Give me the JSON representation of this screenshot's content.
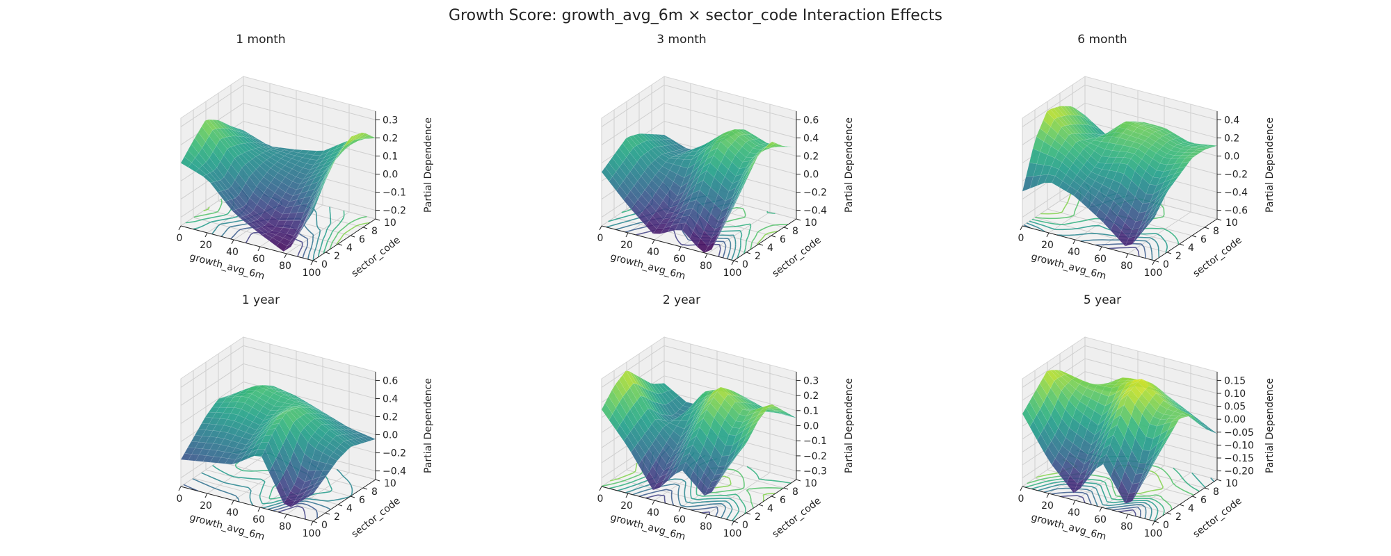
{
  "figure": {
    "title": "Growth Score: growth_avg_6m × sector_code Interaction Effects"
  },
  "chart_data": [
    {
      "type": "surface3d",
      "title": "1 month",
      "xlabel": "growth_avg_6m",
      "ylabel": "sector_code",
      "zlabel": "Partial Dependence",
      "xticks": [
        "0",
        "20",
        "40",
        "60",
        "80",
        "100"
      ],
      "yticks": [
        "0",
        "2",
        "4",
        "6",
        "8",
        "10"
      ],
      "zticks": [
        "−0.2",
        "−0.1",
        "0.0",
        "0.1",
        "0.2",
        "0.3"
      ],
      "xlim": [
        0,
        100
      ],
      "ylim": [
        0,
        10
      ],
      "zlim": [
        -0.25,
        0.35
      ],
      "colormap": "viridis",
      "surface": {
        "x": [
          0,
          20,
          40,
          60,
          80,
          100
        ],
        "y": [
          0,
          2,
          4,
          6,
          8,
          10
        ],
        "z": [
          [
            0.1,
            0.05,
            -0.1,
            -0.18,
            -0.25,
            0.02
          ],
          [
            0.18,
            0.02,
            -0.12,
            -0.2,
            -0.18,
            0.15
          ],
          [
            0.25,
            0.1,
            -0.05,
            -0.12,
            -0.05,
            0.25
          ],
          [
            0.2,
            0.08,
            0.0,
            -0.05,
            0.05,
            0.3
          ],
          [
            0.12,
            0.05,
            0.02,
            0.0,
            0.1,
            0.28
          ],
          [
            0.05,
            0.0,
            0.02,
            0.05,
            0.15,
            0.2
          ]
        ]
      }
    },
    {
      "type": "surface3d",
      "title": "3 month",
      "xlabel": "growth_avg_6m",
      "ylabel": "sector_code",
      "zlabel": "Partial Dependence",
      "xticks": [
        "0",
        "20",
        "40",
        "60",
        "80",
        "100"
      ],
      "yticks": [
        "0",
        "2",
        "4",
        "6",
        "8",
        "10"
      ],
      "zticks": [
        "−0.4",
        "−0.2",
        "0.0",
        "0.2",
        "0.4",
        "0.6"
      ],
      "xlim": [
        0,
        100
      ],
      "ylim": [
        0,
        10
      ],
      "zlim": [
        -0.5,
        0.7
      ],
      "colormap": "viridis",
      "surface": {
        "x": [
          0,
          20,
          40,
          60,
          80,
          100
        ],
        "y": [
          0,
          2,
          4,
          6,
          8,
          10
        ],
        "z": [
          [
            0.1,
            -0.2,
            -0.45,
            -0.3,
            -0.55,
            0.1
          ],
          [
            0.2,
            -0.1,
            -0.35,
            -0.1,
            -0.3,
            0.3
          ],
          [
            0.3,
            0.0,
            -0.2,
            0.2,
            0.0,
            0.5
          ],
          [
            0.25,
            0.05,
            0.1,
            0.4,
            0.2,
            0.55
          ],
          [
            0.15,
            0.0,
            0.2,
            0.45,
            0.3,
            0.4
          ],
          [
            0.05,
            -0.05,
            0.1,
            0.35,
            0.25,
            0.3
          ]
        ]
      }
    },
    {
      "type": "surface3d",
      "title": "6 month",
      "xlabel": "growth_avg_6m",
      "ylabel": "sector_code",
      "zlabel": "Partial Dependence",
      "xticks": [
        "0",
        "20",
        "40",
        "60",
        "80",
        "100"
      ],
      "yticks": [
        "0",
        "2",
        "4",
        "6",
        "8",
        "10"
      ],
      "zticks": [
        "−0.6",
        "−0.4",
        "−0.2",
        "0.0",
        "0.2",
        "0.4"
      ],
      "xlim": [
        0,
        100
      ],
      "ylim": [
        0,
        10
      ],
      "zlim": [
        -0.7,
        0.55
      ],
      "colormap": "viridis",
      "surface": {
        "x": [
          0,
          20,
          40,
          60,
          80,
          100
        ],
        "y": [
          0,
          2,
          4,
          6,
          8,
          10
        ],
        "z": [
          [
            -0.3,
            -0.1,
            -0.2,
            -0.4,
            -0.65,
            -0.2
          ],
          [
            0.2,
            0.1,
            -0.1,
            -0.2,
            -0.4,
            0.0
          ],
          [
            0.45,
            0.2,
            0.0,
            0.1,
            -0.1,
            0.1
          ],
          [
            0.4,
            0.1,
            0.2,
            0.2,
            0.1,
            0.2
          ],
          [
            0.3,
            0.0,
            0.3,
            0.25,
            0.15,
            0.2
          ],
          [
            0.1,
            -0.1,
            0.2,
            0.2,
            0.1,
            0.15
          ]
        ]
      }
    },
    {
      "type": "surface3d",
      "title": "1 year",
      "xlabel": "growth_avg_6m",
      "ylabel": "sector_code",
      "zlabel": "Partial Dependence",
      "xticks": [
        "0",
        "20",
        "40",
        "60",
        "80",
        "100"
      ],
      "yticks": [
        "0",
        "2",
        "4",
        "6",
        "8",
        "10"
      ],
      "zticks": [
        "−0.4",
        "−0.2",
        "0.0",
        "0.2",
        "0.4",
        "0.6"
      ],
      "xlim": [
        0,
        100
      ],
      "ylim": [
        0,
        10
      ],
      "zlim": [
        -0.5,
        0.7
      ],
      "colormap": "viridis",
      "surface": {
        "x": [
          0,
          20,
          40,
          60,
          80,
          100
        ],
        "y": [
          0,
          2,
          4,
          6,
          8,
          10
        ],
        "z": [
          [
            -0.2,
            -0.15,
            -0.1,
            0.1,
            -0.45,
            -0.2
          ],
          [
            -0.05,
            0.0,
            0.0,
            0.3,
            -0.3,
            -0.1
          ],
          [
            0.1,
            0.15,
            0.1,
            0.4,
            0.1,
            0.0
          ],
          [
            0.2,
            0.3,
            0.2,
            0.35,
            0.2,
            0.05
          ],
          [
            0.15,
            0.35,
            0.3,
            0.25,
            0.1,
            0.0
          ],
          [
            0.05,
            0.25,
            0.2,
            0.1,
            0.0,
            -0.05
          ]
        ]
      }
    },
    {
      "type": "surface3d",
      "title": "2 year",
      "xlabel": "growth_avg_6m",
      "ylabel": "sector_code",
      "zlabel": "Partial Dependence",
      "xticks": [
        "0",
        "20",
        "40",
        "60",
        "80",
        "100"
      ],
      "yticks": [
        "0",
        "2",
        "4",
        "6",
        "8",
        "10"
      ],
      "zticks": [
        "−0.3",
        "−0.2",
        "−0.1",
        "0.0",
        "0.1",
        "0.2",
        "0.3"
      ],
      "xlim": [
        0,
        100
      ],
      "ylim": [
        0,
        10
      ],
      "zlim": [
        -0.35,
        0.35
      ],
      "colormap": "viridis",
      "surface": {
        "x": [
          0,
          20,
          40,
          60,
          80,
          100
        ],
        "y": [
          0,
          2,
          4,
          6,
          8,
          10
        ],
        "z": [
          [
            0.15,
            -0.05,
            -0.3,
            -0.1,
            -0.25,
            0.05
          ],
          [
            0.25,
            0.0,
            -0.2,
            0.05,
            -0.15,
            0.1
          ],
          [
            0.3,
            0.05,
            -0.1,
            0.2,
            0.05,
            0.2
          ],
          [
            0.2,
            -0.05,
            0.05,
            0.28,
            0.15,
            0.25
          ],
          [
            0.1,
            -0.1,
            0.15,
            0.2,
            0.1,
            0.15
          ],
          [
            0.05,
            -0.05,
            0.1,
            0.1,
            0.05,
            0.05
          ]
        ]
      }
    },
    {
      "type": "surface3d",
      "title": "5 year",
      "xlabel": "growth_avg_6m",
      "ylabel": "sector_code",
      "zlabel": "Partial Dependence",
      "xticks": [
        "0",
        "20",
        "40",
        "60",
        "80",
        "100"
      ],
      "yticks": [
        "0",
        "2",
        "4",
        "6",
        "8",
        "10"
      ],
      "zticks": [
        "−0.20",
        "−0.15",
        "−0.10",
        "−0.05",
        "0.00",
        "0.05",
        "0.10",
        "0.15"
      ],
      "xlim": [
        0,
        100
      ],
      "ylim": [
        0,
        10
      ],
      "zlim": [
        -0.22,
        0.18
      ],
      "colormap": "viridis",
      "surface": {
        "x": [
          0,
          20,
          40,
          60,
          80,
          100
        ],
        "y": [
          0,
          2,
          4,
          6,
          8,
          10
        ],
        "z": [
          [
            0.05,
            -0.1,
            -0.2,
            -0.05,
            -0.2,
            0.0
          ],
          [
            0.1,
            -0.05,
            -0.1,
            0.05,
            -0.1,
            0.05
          ],
          [
            0.15,
            0.05,
            0.0,
            0.15,
            0.05,
            0.1
          ],
          [
            0.12,
            0.1,
            0.1,
            0.17,
            0.1,
            0.08
          ],
          [
            0.05,
            0.05,
            0.12,
            0.12,
            0.05,
            0.0
          ],
          [
            0.0,
            0.0,
            0.05,
            0.05,
            0.0,
            -0.05
          ]
        ]
      }
    }
  ]
}
